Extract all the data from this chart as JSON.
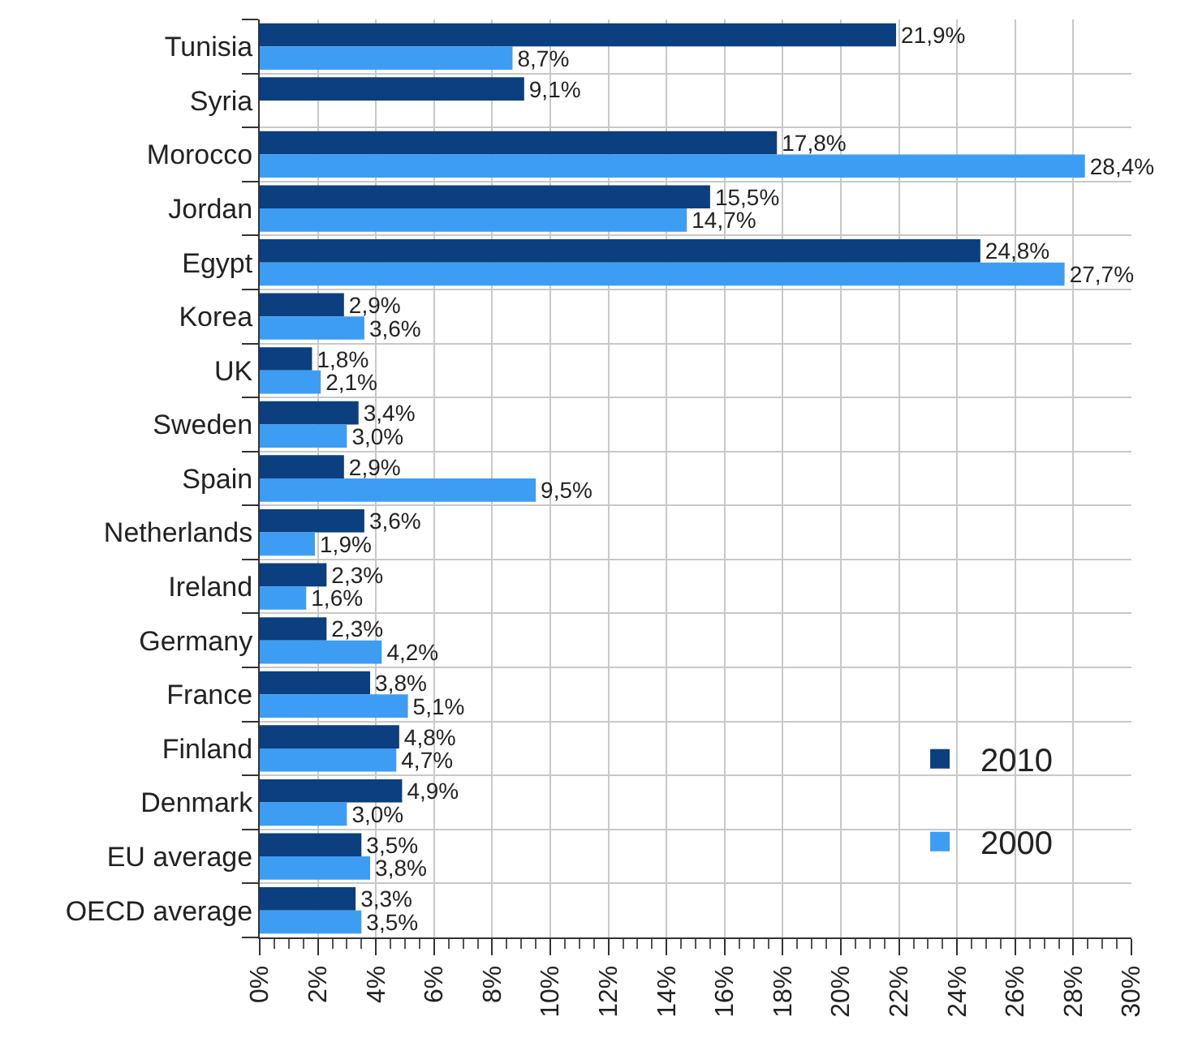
{
  "chart_data": {
    "type": "bar",
    "orientation": "horizontal",
    "categories": [
      "Tunisia",
      "Syria",
      "Morocco",
      "Jordan",
      "Egypt",
      "Korea",
      "UK",
      "Sweden",
      "Spain",
      "Netherlands",
      "Ireland",
      "Germany",
      "France",
      "Finland",
      "Denmark",
      "EU average",
      "OECD average"
    ],
    "series": [
      {
        "name": "2010",
        "color": "#0b3f7f",
        "values": [
          21.9,
          9.1,
          17.8,
          15.5,
          24.8,
          2.9,
          1.8,
          3.4,
          2.9,
          3.6,
          2.3,
          2.3,
          3.8,
          4.8,
          4.9,
          3.5,
          3.3
        ],
        "value_labels": [
          "21,9%",
          "9,1%",
          "17,8%",
          "15,5%",
          "24,8%",
          "2,9%",
          "1,8%",
          "3,4%",
          "2,9%",
          "3,6%",
          "2,3%",
          "2,3%",
          "3,8%",
          "4,8%",
          "4,9%",
          "3,5%",
          "3,3%"
        ]
      },
      {
        "name": "2000",
        "color": "#3d9df3",
        "values": [
          8.7,
          null,
          28.4,
          14.7,
          27.7,
          3.6,
          2.1,
          3.0,
          9.5,
          1.9,
          1.6,
          4.2,
          5.1,
          4.7,
          3.0,
          3.8,
          3.5
        ],
        "value_labels": [
          "8,7%",
          null,
          "28,4%",
          "14,7%",
          "27,7%",
          "3,6%",
          "2,1%",
          "3,0%",
          "9,5%",
          "1,9%",
          "1,6%",
          "4,2%",
          "5,1%",
          "4,7%",
          "3,0%",
          "3,8%",
          "3,5%"
        ]
      }
    ],
    "xlim": [
      0,
      30
    ],
    "xticks": [
      {
        "value": 0,
        "label": "0%"
      },
      {
        "value": 0.5,
        "label": null
      },
      {
        "value": 1,
        "label": null
      },
      {
        "value": 1.5,
        "label": null
      },
      {
        "value": 2,
        "label": "2%"
      },
      {
        "value": 2.5,
        "label": null
      },
      {
        "value": 3,
        "label": null
      },
      {
        "value": 3.5,
        "label": null
      },
      {
        "value": 4,
        "label": "4%"
      },
      {
        "value": 4.5,
        "label": null
      },
      {
        "value": 5,
        "label": null
      },
      {
        "value": 5.5,
        "label": null
      },
      {
        "value": 6,
        "label": "6%"
      },
      {
        "value": 6.5,
        "label": null
      },
      {
        "value": 7,
        "label": null
      },
      {
        "value": 7.5,
        "label": null
      },
      {
        "value": 8,
        "label": "8%"
      },
      {
        "value": 8.5,
        "label": null
      },
      {
        "value": 9,
        "label": null
      },
      {
        "value": 9.5,
        "label": null
      },
      {
        "value": 10,
        "label": "10%"
      },
      {
        "value": 10.5,
        "label": null
      },
      {
        "value": 11,
        "label": null
      },
      {
        "value": 11.5,
        "label": null
      },
      {
        "value": 12,
        "label": "12%"
      },
      {
        "value": 12.5,
        "label": null
      },
      {
        "value": 13,
        "label": null
      },
      {
        "value": 13.5,
        "label": null
      },
      {
        "value": 14,
        "label": "14%"
      },
      {
        "value": 14.5,
        "label": null
      },
      {
        "value": 15,
        "label": null
      },
      {
        "value": 15.5,
        "label": null
      },
      {
        "value": 16,
        "label": "16%"
      },
      {
        "value": 16.5,
        "label": null
      },
      {
        "value": 17,
        "label": null
      },
      {
        "value": 17.5,
        "label": null
      },
      {
        "value": 18,
        "label": "18%"
      },
      {
        "value": 18.5,
        "label": null
      },
      {
        "value": 19,
        "label": null
      },
      {
        "value": 19.5,
        "label": null
      },
      {
        "value": 20,
        "label": "20%"
      },
      {
        "value": 20.5,
        "label": null
      },
      {
        "value": 21,
        "label": null
      },
      {
        "value": 21.5,
        "label": null
      },
      {
        "value": 22,
        "label": "22%"
      },
      {
        "value": 22.5,
        "label": null
      },
      {
        "value": 23,
        "label": null
      },
      {
        "value": 23.5,
        "label": null
      },
      {
        "value": 24,
        "label": "24%"
      },
      {
        "value": 24.5,
        "label": null
      },
      {
        "value": 25,
        "label": null
      },
      {
        "value": 25.5,
        "label": null
      },
      {
        "value": 26,
        "label": "26%"
      },
      {
        "value": 26.5,
        "label": null
      },
      {
        "value": 27,
        "label": null
      },
      {
        "value": 27.5,
        "label": null
      },
      {
        "value": 28,
        "label": "28%"
      },
      {
        "value": 28.5,
        "label": null
      },
      {
        "value": 29,
        "label": null
      },
      {
        "value": 29.5,
        "label": null
      },
      {
        "value": 30,
        "label": "30%"
      }
    ],
    "grid": true,
    "legend": "bottom right"
  }
}
